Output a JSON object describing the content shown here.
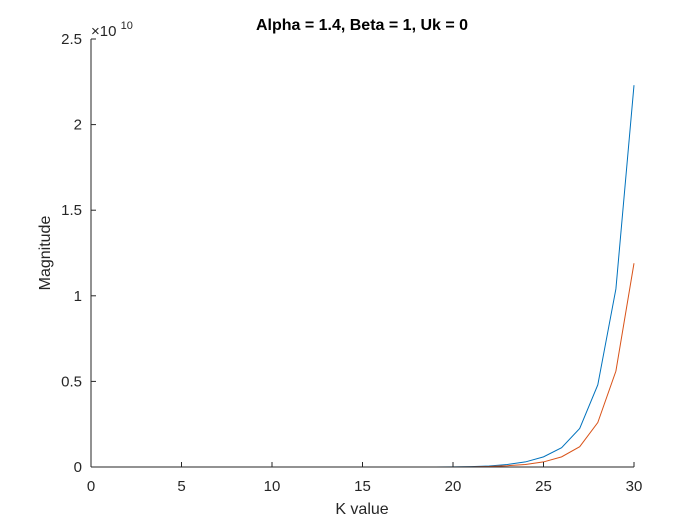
{
  "chart_data": {
    "type": "line",
    "title": "Alpha = 1.4, Beta = 1, Uk = 0",
    "xlabel": "K value",
    "ylabel": "Magnitude",
    "xlim": [
      0,
      30
    ],
    "ylim": [
      0,
      2.5
    ],
    "y_multiplier_label": "×10",
    "y_multiplier_exponent": "10",
    "x_ticks": [
      0,
      5,
      10,
      15,
      20,
      25,
      30
    ],
    "x_tick_labels": [
      "0",
      "5",
      "10",
      "15",
      "20",
      "25",
      "30"
    ],
    "y_ticks": [
      0,
      0.5,
      1,
      1.5,
      2,
      2.5
    ],
    "y_tick_labels": [
      "0",
      "0.5",
      "1",
      "1.5",
      "2",
      "2.5"
    ],
    "grid": false,
    "legend": "none",
    "x": [
      0,
      1,
      2,
      3,
      4,
      5,
      6,
      7,
      8,
      9,
      10,
      11,
      12,
      13,
      14,
      15,
      16,
      17,
      18,
      19,
      20,
      21,
      22,
      23,
      24,
      25,
      26,
      27,
      28,
      29,
      30
    ],
    "series": [
      {
        "color": "#0072BD",
        "values": [
          0,
          0,
          0,
          0,
          0,
          0,
          0,
          0,
          0,
          0,
          0,
          0,
          0,
          0,
          0,
          0,
          0,
          0,
          0,
          0,
          0.0008,
          0.0024,
          0.0061,
          0.0148,
          0.0296,
          0.0592,
          0.1125,
          0.225,
          0.48,
          1.04,
          2.23
        ]
      },
      {
        "color": "#D95319",
        "values": [
          0,
          0,
          0,
          0,
          0,
          0,
          0,
          0,
          0,
          0,
          0,
          0,
          0,
          0,
          0,
          0,
          0,
          0,
          0,
          0,
          0.0003,
          0.001,
          0.003,
          0.0074,
          0.0148,
          0.0296,
          0.0592,
          0.1184,
          0.26,
          0.56,
          1.19
        ]
      }
    ]
  }
}
